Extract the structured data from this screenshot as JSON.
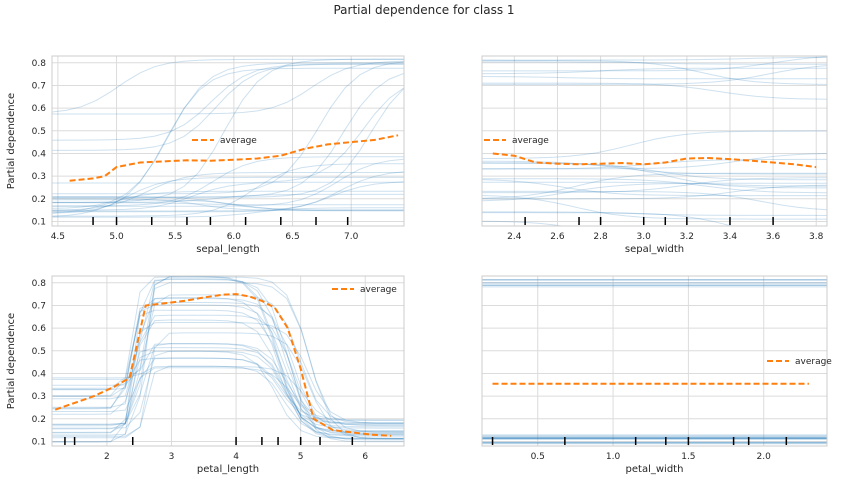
{
  "figure": {
    "title": "Partial dependence for class 1"
  },
  "chart_data": [
    {
      "type": "line",
      "xlabel": "sepal_length",
      "ylabel": "Partial dependence",
      "xlim": [
        4.45,
        7.45
      ],
      "ylim": [
        0.08,
        0.83
      ],
      "xticks": [
        4.5,
        5.0,
        5.5,
        6.0,
        6.5,
        7.0
      ],
      "xtick_labels": [
        "4.5",
        "5.0",
        "5.5",
        "6.0",
        "6.5",
        "7.0"
      ],
      "yticks": [
        0.1,
        0.2,
        0.3,
        0.4,
        0.5,
        0.6,
        0.7,
        0.8
      ],
      "ytick_labels": [
        "0.1",
        "0.2",
        "0.3",
        "0.4",
        "0.5",
        "0.6",
        "0.7",
        "0.8"
      ],
      "legend": {
        "label": "average",
        "location": "center"
      },
      "average": {
        "x": [
          4.6,
          4.8,
          4.9,
          5.0,
          5.2,
          5.4,
          5.6,
          5.8,
          6.0,
          6.2,
          6.4,
          6.6,
          6.8,
          7.0,
          7.2,
          7.4
        ],
        "y": [
          0.28,
          0.29,
          0.3,
          0.34,
          0.36,
          0.365,
          0.37,
          0.368,
          0.372,
          0.378,
          0.39,
          0.42,
          0.44,
          0.45,
          0.46,
          0.48
        ]
      },
      "rug": [
        4.8,
        5.0,
        5.3,
        5.6,
        5.8,
        6.1,
        6.4,
        6.7,
        6.97
      ]
    },
    {
      "type": "line",
      "xlabel": "sepal_width",
      "ylabel": "",
      "xlim": [
        2.25,
        3.85
      ],
      "ylim": [
        0.08,
        0.83
      ],
      "xticks": [
        2.4,
        2.6,
        2.8,
        3.0,
        3.2,
        3.4,
        3.6,
        3.8
      ],
      "xtick_labels": [
        "2.4",
        "2.6",
        "2.8",
        "3.0",
        "3.2",
        "3.4",
        "3.6",
        "3.8"
      ],
      "yticks": [
        0.1,
        0.2,
        0.3,
        0.4,
        0.5,
        0.6,
        0.7,
        0.8
      ],
      "ytick_labels": [],
      "legend": {
        "label": "average",
        "location": "upper left"
      },
      "average": {
        "x": [
          2.3,
          2.4,
          2.5,
          2.6,
          2.7,
          2.8,
          2.9,
          3.0,
          3.1,
          3.2,
          3.3,
          3.4,
          3.5,
          3.6,
          3.7,
          3.8
        ],
        "y": [
          0.4,
          0.39,
          0.36,
          0.355,
          0.352,
          0.355,
          0.358,
          0.352,
          0.36,
          0.378,
          0.38,
          0.375,
          0.368,
          0.36,
          0.352,
          0.34
        ]
      },
      "rug": [
        2.45,
        2.7,
        2.8,
        3.0,
        3.1,
        3.2,
        3.4,
        3.6
      ]
    },
    {
      "type": "line",
      "xlabel": "petal_length",
      "ylabel": "Partial dependence",
      "xlim": [
        1.15,
        6.6
      ],
      "ylim": [
        0.08,
        0.83
      ],
      "xticks": [
        2,
        3,
        4,
        5,
        6
      ],
      "xtick_labels": [
        "2",
        "3",
        "4",
        "5",
        "6"
      ],
      "yticks": [
        0.1,
        0.2,
        0.3,
        0.4,
        0.5,
        0.6,
        0.7,
        0.8
      ],
      "ytick_labels": [
        "0.1",
        "0.2",
        "0.3",
        "0.4",
        "0.5",
        "0.6",
        "0.7",
        "0.8"
      ],
      "legend": {
        "label": "average",
        "location": "upper right"
      },
      "average": {
        "x": [
          1.2,
          1.5,
          1.8,
          2.1,
          2.35,
          2.6,
          2.9,
          3.2,
          3.5,
          3.8,
          4.0,
          4.2,
          4.4,
          4.6,
          4.8,
          5.0,
          5.2,
          5.5,
          5.8,
          6.1,
          6.4
        ],
        "y": [
          0.24,
          0.27,
          0.3,
          0.34,
          0.38,
          0.7,
          0.71,
          0.72,
          0.735,
          0.748,
          0.75,
          0.74,
          0.72,
          0.69,
          0.6,
          0.42,
          0.2,
          0.15,
          0.14,
          0.13,
          0.125
        ]
      },
      "rug": [
        1.35,
        1.5,
        2.4,
        4.0,
        4.4,
        4.65,
        5.0,
        5.3,
        5.8
      ]
    },
    {
      "type": "line",
      "xlabel": "petal_width",
      "ylabel": "",
      "xlim": [
        0.13,
        2.42
      ],
      "ylim": [
        0.08,
        0.83
      ],
      "xticks": [
        0.5,
        1.0,
        1.5,
        2.0
      ],
      "xtick_labels": [
        "0.5",
        "1.0",
        "1.5",
        "2.0"
      ],
      "yticks": [
        0.1,
        0.2,
        0.3,
        0.4,
        0.5,
        0.6,
        0.7,
        0.8
      ],
      "ytick_labels": [],
      "legend": {
        "label": "average",
        "location": "center right"
      },
      "average": {
        "x": [
          0.2,
          0.5,
          1.0,
          1.5,
          2.0,
          2.3
        ],
        "y": [
          0.355,
          0.355,
          0.355,
          0.355,
          0.355,
          0.355
        ]
      },
      "rug": [
        0.2,
        0.68,
        1.15,
        1.35,
        1.5,
        1.8,
        1.9,
        2.15
      ]
    }
  ]
}
